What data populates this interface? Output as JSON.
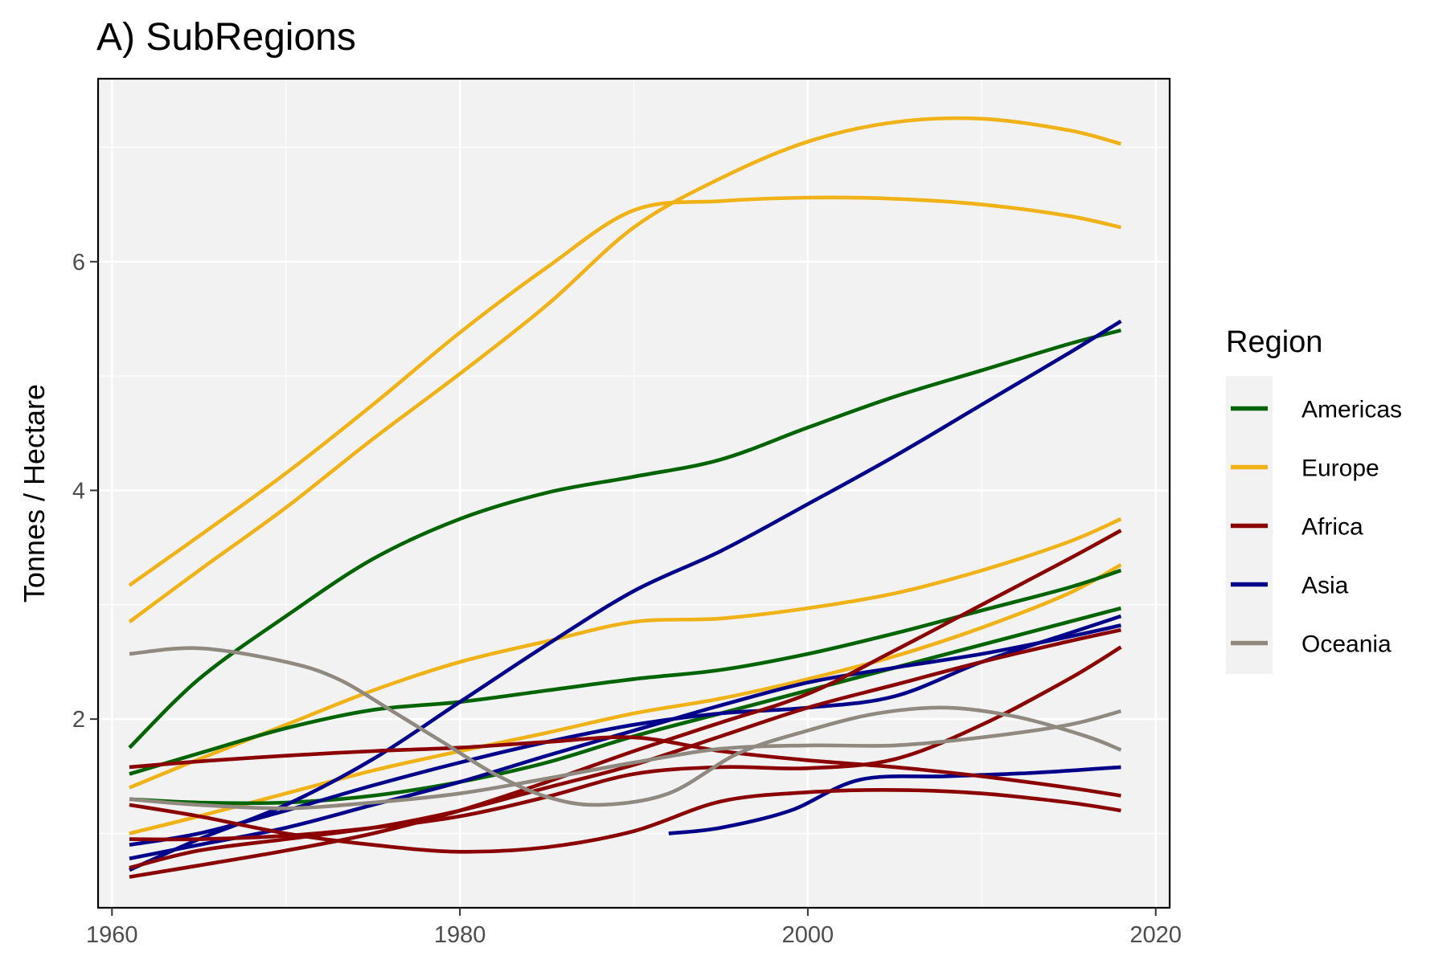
{
  "chart_data": {
    "type": "line",
    "title": "A) SubRegions",
    "xlabel": "",
    "ylabel": "Tonnes / Hectare",
    "xlim": [
      1959.2,
      2020.8
    ],
    "ylim": [
      0.35,
      7.6
    ],
    "x_ticks": [
      1960,
      1980,
      2000,
      2020
    ],
    "y_ticks": [
      2,
      4,
      6
    ],
    "grid": true,
    "background": "#f2f2f2",
    "legend": {
      "title": "Region",
      "position": "right",
      "entries": [
        {
          "name": "Americas",
          "color": "#006400"
        },
        {
          "name": "Europe",
          "color": "#f0b216"
        },
        {
          "name": "Africa",
          "color": "#8b0000"
        },
        {
          "name": "Asia",
          "color": "#00008b"
        },
        {
          "name": "Oceania",
          "color": "#8f8980"
        }
      ]
    },
    "series": [
      {
        "region": "Europe",
        "x": [
          1961,
          1965,
          1970,
          1975,
          1980,
          1985,
          1990,
          1995,
          2000,
          2005,
          2010,
          2015,
          2018
        ],
        "y": [
          3.17,
          3.6,
          4.15,
          4.75,
          5.38,
          5.95,
          6.45,
          6.53,
          6.56,
          6.55,
          6.5,
          6.4,
          6.3
        ]
      },
      {
        "region": "Europe",
        "x": [
          1961,
          1965,
          1970,
          1975,
          1980,
          1985,
          1990,
          1995,
          2000,
          2005,
          2010,
          2015,
          2018
        ],
        "y": [
          2.85,
          3.3,
          3.85,
          4.45,
          5.02,
          5.62,
          6.3,
          6.73,
          7.05,
          7.22,
          7.25,
          7.15,
          7.03
        ]
      },
      {
        "region": "Europe",
        "x": [
          1961,
          1965,
          1970,
          1975,
          1980,
          1985,
          1990,
          1995,
          2000,
          2005,
          2010,
          2015,
          2018
        ],
        "y": [
          1.4,
          1.65,
          1.95,
          2.25,
          2.5,
          2.68,
          2.85,
          2.88,
          2.97,
          3.1,
          3.3,
          3.55,
          3.75
        ]
      },
      {
        "region": "Europe",
        "x": [
          1961,
          1965,
          1970,
          1975,
          1980,
          1985,
          1990,
          1995,
          2000,
          2005,
          2010,
          2015,
          2018
        ],
        "y": [
          1.0,
          1.15,
          1.35,
          1.55,
          1.72,
          1.88,
          2.05,
          2.18,
          2.35,
          2.55,
          2.8,
          3.1,
          3.35
        ]
      },
      {
        "region": "Americas",
        "x": [
          1961,
          1965,
          1970,
          1975,
          1980,
          1985,
          1990,
          1995,
          2000,
          2005,
          2010,
          2015,
          2018
        ],
        "y": [
          1.75,
          2.35,
          2.9,
          3.4,
          3.75,
          3.98,
          4.12,
          4.27,
          4.55,
          4.82,
          5.05,
          5.28,
          5.4
        ]
      },
      {
        "region": "Americas",
        "x": [
          1961,
          1965,
          1970,
          1975,
          1980,
          1985,
          1990,
          1995,
          2000,
          2005,
          2010,
          2015,
          2018
        ],
        "y": [
          1.52,
          1.7,
          1.92,
          2.08,
          2.15,
          2.25,
          2.35,
          2.43,
          2.57,
          2.75,
          2.95,
          3.15,
          3.3
        ]
      },
      {
        "region": "Americas",
        "x": [
          1961,
          1965,
          1970,
          1975,
          1980,
          1985,
          1990,
          1995,
          2000,
          2005,
          2010,
          2015,
          2018
        ],
        "y": [
          1.3,
          1.27,
          1.27,
          1.33,
          1.45,
          1.62,
          1.85,
          2.05,
          2.25,
          2.45,
          2.65,
          2.85,
          2.97
        ]
      },
      {
        "region": "Asia",
        "x": [
          1992,
          1995,
          1999,
          2003,
          2008,
          2013,
          2018
        ],
        "y": [
          1.0,
          1.05,
          1.2,
          1.47,
          1.5,
          1.53,
          1.58
        ]
      },
      {
        "region": "Asia",
        "x": [
          1961,
          1965,
          1970,
          1975,
          1980,
          1985,
          1990,
          1995,
          2000,
          2005,
          2010,
          2015,
          2018
        ],
        "y": [
          0.68,
          0.95,
          1.25,
          1.65,
          2.15,
          2.65,
          3.12,
          3.47,
          3.88,
          4.3,
          4.75,
          5.2,
          5.48
        ]
      },
      {
        "region": "Asia",
        "x": [
          1961,
          1965,
          1970,
          1975,
          1980,
          1985,
          1990,
          1995,
          2000,
          2005,
          2010,
          2015,
          2018
        ],
        "y": [
          0.9,
          1.0,
          1.2,
          1.42,
          1.62,
          1.8,
          1.95,
          2.05,
          2.1,
          2.2,
          2.5,
          2.75,
          2.9
        ]
      },
      {
        "region": "Asia",
        "x": [
          1961,
          1965,
          1970,
          1975,
          1980,
          1985,
          1990,
          1995,
          2000,
          2005,
          2010,
          2015,
          2018
        ],
        "y": [
          0.78,
          0.9,
          1.05,
          1.25,
          1.45,
          1.68,
          1.9,
          2.12,
          2.32,
          2.45,
          2.57,
          2.72,
          2.82
        ]
      },
      {
        "region": "Africa",
        "x": [
          1961,
          1965,
          1970,
          1975,
          1980,
          1985,
          1990,
          1995,
          2000,
          2005,
          2010,
          2015,
          2018
        ],
        "y": [
          1.58,
          1.63,
          1.68,
          1.72,
          1.75,
          1.8,
          1.84,
          1.72,
          1.64,
          1.58,
          1.5,
          1.4,
          1.33
        ]
      },
      {
        "region": "Africa",
        "x": [
          1961,
          1965,
          1970,
          1975,
          1980,
          1985,
          1990,
          1995,
          2000,
          2005,
          2010,
          2015,
          2018
        ],
        "y": [
          1.25,
          1.15,
          1.0,
          0.9,
          0.84,
          0.88,
          1.02,
          1.28,
          1.36,
          1.38,
          1.35,
          1.27,
          1.2
        ]
      },
      {
        "region": "Africa",
        "x": [
          1961,
          1965,
          1970,
          1975,
          1980,
          1985,
          1990,
          1995,
          2000,
          2005,
          2010,
          2015,
          2018
        ],
        "y": [
          0.95,
          0.95,
          0.98,
          1.05,
          1.15,
          1.32,
          1.52,
          1.58,
          1.57,
          1.65,
          1.95,
          2.35,
          2.63
        ]
      },
      {
        "region": "Africa",
        "x": [
          1961,
          1965,
          1970,
          1975,
          1980,
          1985,
          1990,
          1995,
          2000,
          2005,
          2010,
          2015,
          2018
        ],
        "y": [
          0.62,
          0.72,
          0.85,
          1.0,
          1.2,
          1.45,
          1.72,
          1.97,
          2.22,
          2.6,
          3.0,
          3.4,
          3.65
        ]
      },
      {
        "region": "Africa",
        "x": [
          1961,
          1965,
          1970,
          1975,
          1980,
          1985,
          1990,
          1995,
          2000,
          2005,
          2010,
          2015,
          2018
        ],
        "y": [
          0.7,
          0.85,
          0.95,
          1.05,
          1.2,
          1.4,
          1.6,
          1.85,
          2.1,
          2.3,
          2.5,
          2.68,
          2.78
        ]
      },
      {
        "region": "Oceania",
        "x": [
          1961,
          1965,
          1970,
          1973,
          1976,
          1979,
          1982,
          1985,
          1988,
          1992,
          1996,
          2000,
          2004,
          2008,
          2012,
          2016,
          2018
        ],
        "y": [
          2.57,
          2.62,
          2.5,
          2.35,
          2.08,
          1.8,
          1.52,
          1.32,
          1.25,
          1.35,
          1.7,
          1.9,
          2.05,
          2.1,
          2.02,
          1.85,
          1.73
        ]
      },
      {
        "region": "Oceania",
        "x": [
          1961,
          1965,
          1970,
          1975,
          1980,
          1985,
          1990,
          1995,
          2000,
          2005,
          2010,
          2015,
          2018
        ],
        "y": [
          1.3,
          1.25,
          1.22,
          1.27,
          1.35,
          1.48,
          1.62,
          1.74,
          1.77,
          1.77,
          1.84,
          1.95,
          2.07
        ]
      }
    ]
  }
}
